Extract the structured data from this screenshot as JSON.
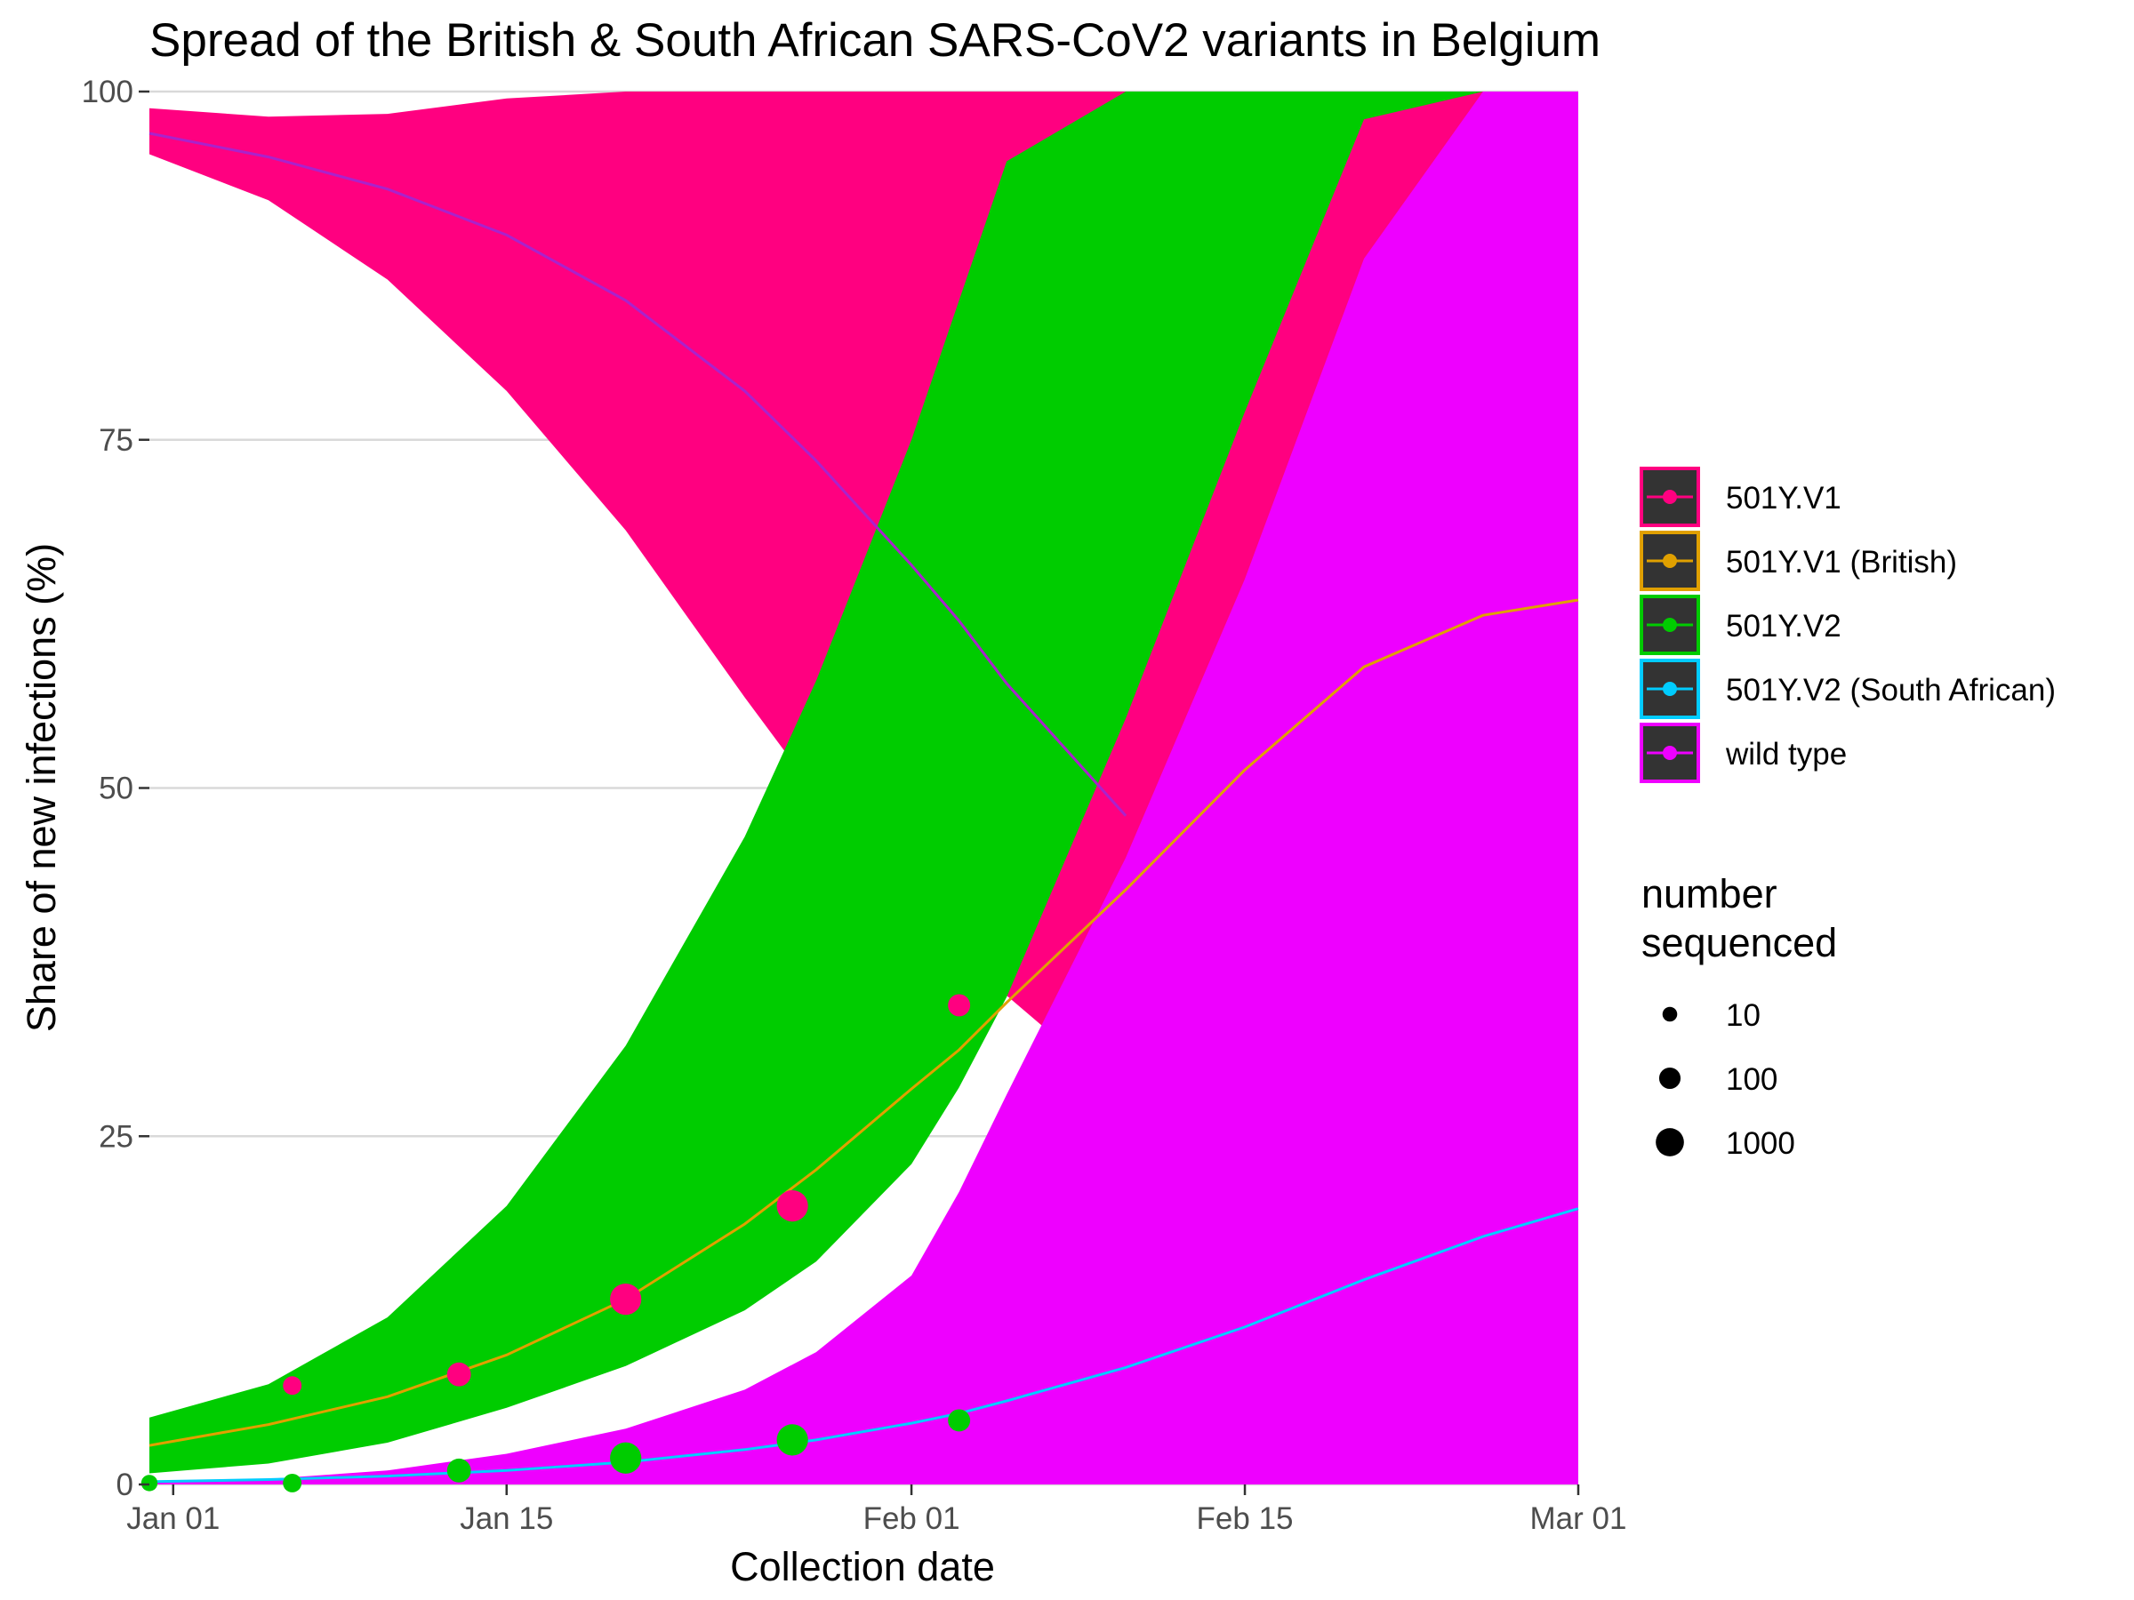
{
  "chart_data": {
    "type": "area",
    "title": "Spread of the British & South African SARS-CoV2 variants in Belgium",
    "xlabel": "Collection date",
    "ylabel": "Share of new infections (%)",
    "x_ticks": [
      {
        "date": "2021-01-01",
        "label": "Jan 01"
      },
      {
        "date": "2021-01-15",
        "label": "Jan 15"
      },
      {
        "date": "2021-02-01",
        "label": "Feb 01"
      },
      {
        "date": "2021-02-15",
        "label": "Feb 15"
      },
      {
        "date": "2021-03-01",
        "label": "Mar 01"
      }
    ],
    "xlim": [
      "2020-12-31",
      "2021-03-01"
    ],
    "ylim": [
      0,
      100
    ],
    "y_ticks": [
      0,
      25,
      50,
      75,
      100
    ],
    "grid": "horizontal major",
    "legend_position": "right",
    "bands": [
      {
        "name": "501Y.V1",
        "color": "#ff0080",
        "x": [
          "2020-12-31",
          "2021-01-05",
          "2021-01-10",
          "2021-01-15",
          "2021-01-20",
          "2021-01-25",
          "2021-01-28",
          "2021-02-01",
          "2021-02-03",
          "2021-02-05",
          "2021-02-10",
          "2021-02-15",
          "2021-02-20",
          "2021-02-25",
          "2021-03-01"
        ],
        "upper": [
          98.8,
          98.2,
          98.4,
          99.5,
          100,
          100,
          100,
          100,
          100,
          100,
          100,
          100,
          100,
          100,
          100
        ],
        "lower": [
          95.5,
          92.2,
          86.5,
          78.5,
          68.5,
          56.5,
          49.6,
          41.9,
          38.4,
          35.1,
          27.8,
          21.7,
          16.8,
          13.0,
          10.6
        ]
      },
      {
        "name": "501Y.V2",
        "color": "#00cc00",
        "x": [
          "2020-12-31",
          "2021-01-05",
          "2021-01-10",
          "2021-01-15",
          "2021-01-20",
          "2021-01-25",
          "2021-01-28",
          "2021-02-01",
          "2021-02-03",
          "2021-02-05",
          "2021-02-10",
          "2021-02-15",
          "2021-02-20",
          "2021-02-25",
          "2021-03-01"
        ],
        "upper": [
          4.8,
          7.2,
          12.0,
          20.0,
          31.5,
          46.5,
          57.7,
          75.0,
          85.0,
          95.0,
          100,
          100,
          100,
          100,
          100
        ],
        "lower": [
          0.8,
          1.5,
          3.0,
          5.5,
          8.5,
          12.5,
          16.0,
          23.0,
          28.5,
          35.0,
          55.0,
          77.0,
          98.0,
          100,
          100
        ]
      },
      {
        "name": "wild type",
        "color": "#ee00ff",
        "x": [
          "2020-12-31",
          "2021-01-05",
          "2021-01-10",
          "2021-01-15",
          "2021-01-20",
          "2021-01-25",
          "2021-01-28",
          "2021-02-01",
          "2021-02-03",
          "2021-02-05",
          "2021-02-10",
          "2021-02-15",
          "2021-02-20",
          "2021-02-25",
          "2021-03-01"
        ],
        "upper": [
          0.1,
          0.4,
          1.0,
          2.2,
          4.0,
          6.8,
          9.5,
          15.0,
          21.0,
          28.0,
          45.0,
          65.0,
          88.0,
          100,
          100
        ],
        "lower": [
          0,
          0,
          0,
          0,
          0,
          0,
          0,
          0,
          0,
          0,
          0,
          0,
          0,
          0,
          0
        ]
      }
    ],
    "lines": [
      {
        "name": "501Y.V1 (British)",
        "color": "#e0a000",
        "x": [
          "2020-12-31",
          "2021-01-05",
          "2021-01-10",
          "2021-01-15",
          "2021-01-20",
          "2021-01-25",
          "2021-01-28",
          "2021-02-01",
          "2021-02-03",
          "2021-02-05",
          "2021-02-10",
          "2021-02-15",
          "2021-02-20",
          "2021-02-25",
          "2021-03-01"
        ],
        "y": [
          2.8,
          4.3,
          6.3,
          9.3,
          13.3,
          18.7,
          22.6,
          28.4,
          31.2,
          34.6,
          42.7,
          51.3,
          58.7,
          62.4,
          63.5
        ]
      },
      {
        "name": "501Y.V2 (South African)",
        "color": "#00ccff",
        "x": [
          "2020-12-31",
          "2021-01-05",
          "2021-01-10",
          "2021-01-15",
          "2021-01-20",
          "2021-01-25",
          "2021-01-28",
          "2021-02-01",
          "2021-02-03",
          "2021-02-05",
          "2021-02-10",
          "2021-02-15",
          "2021-02-20",
          "2021-02-25",
          "2021-03-01"
        ],
        "y": [
          0.2,
          0.35,
          0.6,
          1.0,
          1.6,
          2.5,
          3.2,
          4.4,
          5.1,
          6.0,
          8.4,
          11.3,
          14.7,
          17.8,
          19.8
        ]
      },
      {
        "name": "wild type",
        "color": "#aa22cc",
        "x": [
          "2020-12-31",
          "2021-01-05",
          "2021-01-10",
          "2021-01-15",
          "2021-01-20",
          "2021-01-25",
          "2021-01-28",
          "2021-02-01",
          "2021-02-03",
          "2021-02-05",
          "2021-02-10"
        ],
        "y": [
          97.0,
          95.3,
          93.0,
          89.7,
          85.0,
          78.5,
          73.5,
          66.0,
          62.0,
          57.5,
          48.0
        ]
      }
    ],
    "points": [
      {
        "series": "501Y.V1",
        "color": "#ff0080",
        "x": "2021-01-06",
        "y": 7.1,
        "n": 20
      },
      {
        "series": "501Y.V1",
        "color": "#ff0080",
        "x": "2021-01-13",
        "y": 7.9,
        "n": 100
      },
      {
        "series": "501Y.V1",
        "color": "#ff0080",
        "x": "2021-01-20",
        "y": 13.3,
        "n": 1000
      },
      {
        "series": "501Y.V1",
        "color": "#ff0080",
        "x": "2021-01-27",
        "y": 20.0,
        "n": 1000
      },
      {
        "series": "501Y.V1",
        "color": "#ff0080",
        "x": "2021-02-03",
        "y": 34.4,
        "n": 60
      },
      {
        "series": "501Y.V2",
        "color": "#00cc00",
        "x": "2020-12-31",
        "y": 0.1,
        "n": 10
      },
      {
        "series": "501Y.V2",
        "color": "#00cc00",
        "x": "2021-01-06",
        "y": 0.1,
        "n": 20
      },
      {
        "series": "501Y.V2",
        "color": "#00cc00",
        "x": "2021-01-13",
        "y": 1.0,
        "n": 100
      },
      {
        "series": "501Y.V2",
        "color": "#00cc00",
        "x": "2021-01-20",
        "y": 1.9,
        "n": 1000
      },
      {
        "series": "501Y.V2",
        "color": "#00cc00",
        "x": "2021-01-27",
        "y": 3.2,
        "n": 1000
      },
      {
        "series": "501Y.V2",
        "color": "#00cc00",
        "x": "2021-02-03",
        "y": 4.6,
        "n": 60
      }
    ],
    "legend": {
      "items": [
        {
          "label": "501Y.V1",
          "color": "#ff0080"
        },
        {
          "label": "501Y.V1 (British)",
          "color": "#e0a000"
        },
        {
          "label": "501Y.V2",
          "color": "#00cc00"
        },
        {
          "label": "501Y.V2 (South African)",
          "color": "#00ccff"
        },
        {
          "label": "wild type",
          "color": "#ee00ff"
        }
      ],
      "size_title": "number\nsequenced",
      "size_items": [
        {
          "label": "10",
          "n": 10
        },
        {
          "label": "100",
          "n": 100
        },
        {
          "label": "1000",
          "n": 1000
        }
      ]
    }
  }
}
